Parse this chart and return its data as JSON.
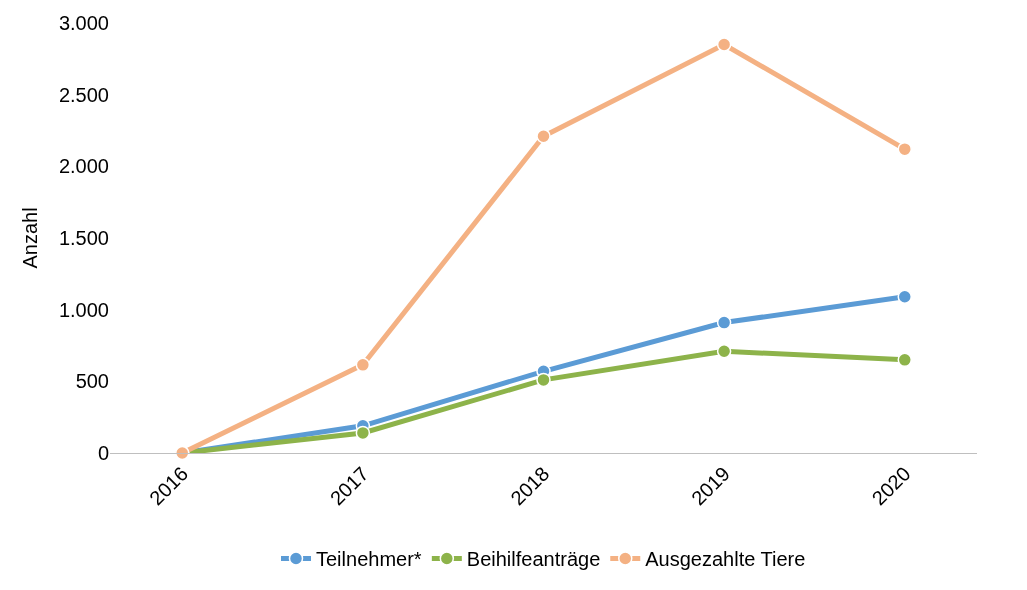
{
  "chart_data": {
    "type": "line",
    "ylabel": "Anzahl",
    "categories": [
      "2016",
      "2017",
      "2018",
      "2019",
      "2020"
    ],
    "series": [
      {
        "name": "Teilnehmer*",
        "color": "#5b9bd5",
        "values": [
          0,
          190,
          570,
          910,
          1090
        ]
      },
      {
        "name": "Beihilfeanträge",
        "color": "#8db34a",
        "values": [
          0,
          140,
          510,
          710,
          650
        ]
      },
      {
        "name": "Ausgezahlte Tiere",
        "color": "#f4b183",
        "values": [
          0,
          615,
          2210,
          2850,
          2120
        ]
      }
    ],
    "ylim": [
      0,
      3000
    ],
    "yticks": [
      0,
      500,
      {
        "value": 1000,
        "label": "1.000"
      },
      {
        "value": 1500,
        "label": "1.500"
      },
      {
        "value": 2000,
        "label": "2.000"
      },
      {
        "value": 2500,
        "label": "2.500"
      },
      {
        "value": 3000,
        "label": "3.000"
      }
    ],
    "marker": "circle",
    "line_style": "solid",
    "grid": false,
    "legend": "bottom"
  }
}
